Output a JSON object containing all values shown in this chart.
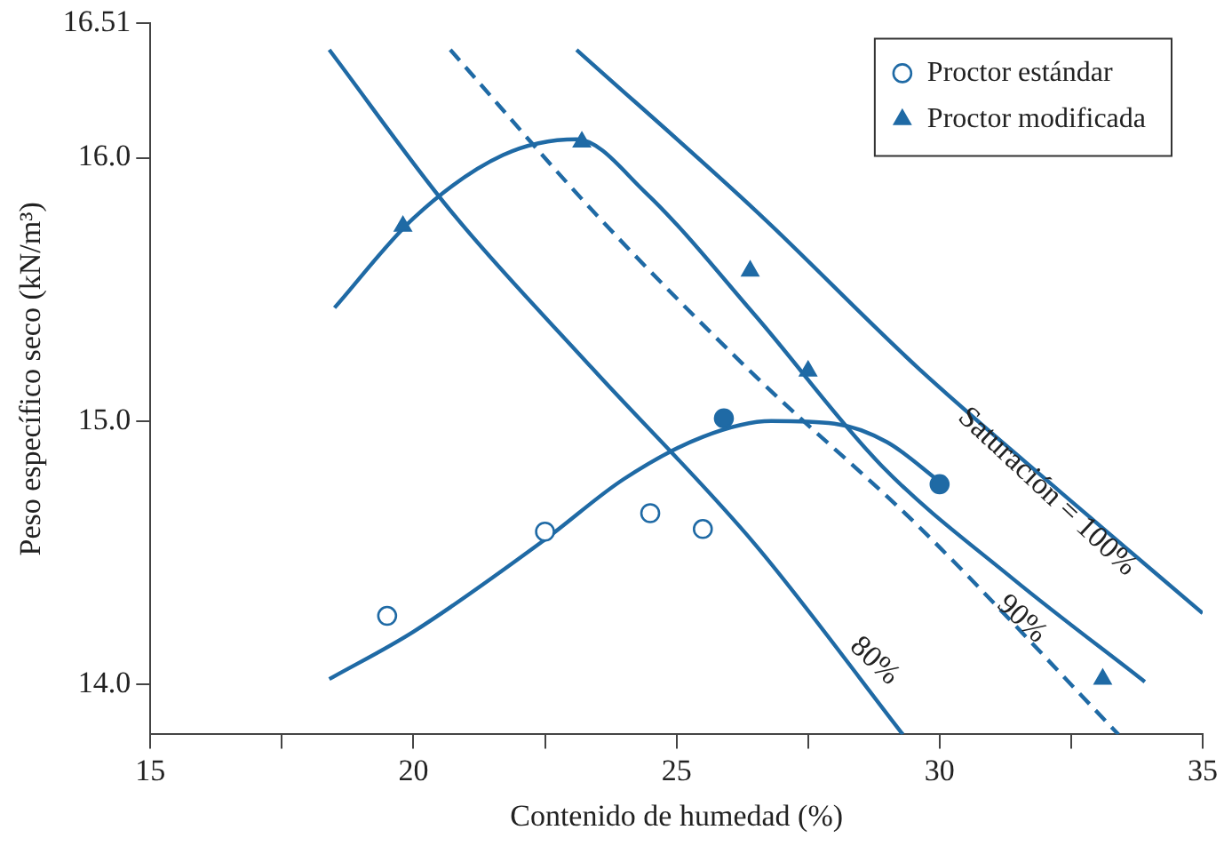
{
  "chart_data": {
    "type": "scatter",
    "xlabel": "Contenido de humedad (%)",
    "ylabel": "Peso específico seco (kN/m³)",
    "xlim": [
      15,
      35
    ],
    "xticks": [
      15,
      {
        "value": 17.5,
        "label": null
      },
      20,
      {
        "value": 22.5,
        "label": null
      },
      25,
      {
        "value": 27.5,
        "label": null
      },
      30,
      {
        "value": 32.5,
        "label": null
      },
      35
    ],
    "ylim": [
      13.81,
      16.51
    ],
    "yticks": [
      {
        "value": 14,
        "label": "14.0"
      },
      {
        "value": 15,
        "label": "15.0"
      },
      {
        "value": 16,
        "label": "16.0"
      },
      16.51
    ],
    "grid": false,
    "legend": "top right",
    "series": [
      {
        "name": "Proctor estándar",
        "marker": "circle",
        "color": "#1f6aa5",
        "x": [
          19.5,
          22.5,
          24.5,
          25.5
        ],
        "values": [
          14.26,
          14.58,
          14.65,
          14.59
        ]
      },
      {
        "marker": "circle",
        "color": "#1f6aa5",
        "x": [
          25.9,
          30
        ],
        "values": [
          15.01,
          14.76
        ]
      },
      {
        "name": "Proctor modificada",
        "marker": "triangle",
        "color": "#1f6aa5",
        "x": [
          19.8,
          23.2,
          26.4,
          27.5,
          33.1
        ],
        "values": [
          15.74,
          16.06,
          15.57,
          15.19,
          14.02
        ]
      },
      {
        "type": "line",
        "marker": "none",
        "line_style": "solid",
        "color": "#1f6aa5",
        "x": [
          18.4,
          20,
          22.5,
          24,
          25.5,
          26.8,
          28,
          29,
          30
        ],
        "values": [
          14.02,
          14.2,
          14.55,
          14.78,
          14.94,
          15.0,
          14.99,
          14.92,
          14.77
        ]
      },
      {
        "type": "line",
        "marker": "none",
        "line_style": "solid",
        "color": "#1f6aa5",
        "x": [
          18.5,
          20,
          21.7,
          23.1,
          24.4,
          26.5,
          28.9,
          31.4,
          33.9
        ],
        "values": [
          15.43,
          15.77,
          16.01,
          16.07,
          15.87,
          15.4,
          14.83,
          14.4,
          14.01
        ]
      },
      {
        "type": "line",
        "marker": "none",
        "line_style": "solid",
        "color": "#1f6aa5",
        "x": [
          23.1,
          26.5,
          29.6,
          32.3,
          35
        ],
        "values": [
          16.41,
          15.8,
          15.2,
          14.73,
          14.27
        ]
      },
      {
        "type": "line",
        "marker": "none",
        "line_style": "dashed",
        "color": "#1f6aa5",
        "x": [
          20.7,
          23.4,
          26.5,
          29.6,
          33.4
        ],
        "values": [
          16.41,
          15.8,
          15.17,
          14.6,
          13.81
        ]
      },
      {
        "type": "line",
        "marker": "none",
        "line_style": "solid",
        "color": "#1f6aa5",
        "x": [
          18.4,
          20.7,
          23.4,
          26.5,
          29.3
        ],
        "values": [
          16.41,
          15.8,
          15.2,
          14.53,
          13.81
        ]
      }
    ],
    "annotations": [
      "Saturación = 100%",
      "90%",
      "80%"
    ]
  }
}
